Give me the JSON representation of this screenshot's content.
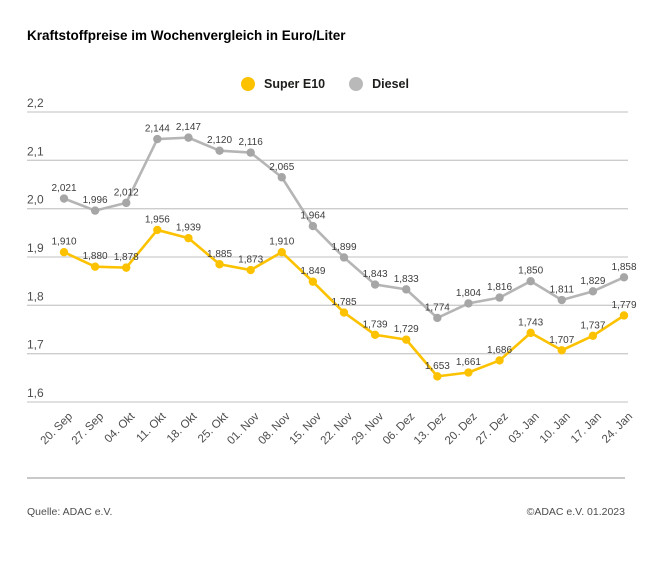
{
  "title": "Kraftstoffpreise im Wochenvergleich in Euro/Liter",
  "legend": {
    "items": [
      {
        "label": "Super E10",
        "color": "#fcc200"
      },
      {
        "label": "Diesel",
        "color": "#b9b9b9"
      }
    ]
  },
  "footer": {
    "source": "Quelle: ADAC e.V.",
    "copyright": "©ADAC e.V. 01.2023"
  },
  "colors": {
    "grid": "#cdcdcd",
    "value_label_text": "#3d3d3d",
    "axis_text": "#4d4d4d",
    "super_e10": "#fcc200",
    "diesel_line": "#b5b5b5",
    "diesel_point": "#a6a6a6"
  },
  "chart_data": {
    "type": "line",
    "title": "Kraftstoffpreise im Wochenvergleich in Euro/Liter",
    "xlabel": "",
    "ylabel": "Euro/Liter",
    "grid": true,
    "legend_position": "top",
    "ylim": [
      1.6,
      2.2
    ],
    "yticks": [
      {
        "label": "2,2",
        "value": 2.2
      },
      {
        "label": "2,1",
        "value": 2.1
      },
      {
        "label": "2,0",
        "value": 2.0
      },
      {
        "label": "1,9",
        "value": 1.9
      },
      {
        "label": "1,8",
        "value": 1.8
      },
      {
        "label": "1,7",
        "value": 1.7
      },
      {
        "label": "1,6",
        "value": 1.6
      }
    ],
    "categories": [
      "20. Sep",
      "27. Sep",
      "04. Okt",
      "11. Okt",
      "18. Okt",
      "25. Okt",
      "01. Nov",
      "08. Nov",
      "15. Nov",
      "22. Nov",
      "29. Nov",
      "06. Dez",
      "13. Dez",
      "20. Dez",
      "27. Dez",
      "03. Jan",
      "10. Jan",
      "17. Jan",
      "24. Jan"
    ],
    "series": [
      {
        "name": "Super E10",
        "line_color": "#fcc200",
        "point_color": "#fcc200",
        "values": [
          1.91,
          1.88,
          1.878,
          1.956,
          1.939,
          1.885,
          1.873,
          1.91,
          1.849,
          1.785,
          1.739,
          1.729,
          1.653,
          1.661,
          1.686,
          1.743,
          1.707,
          1.737,
          1.779
        ]
      },
      {
        "name": "Diesel",
        "line_color": "#b5b5b5",
        "point_color": "#a6a6a6",
        "values": [
          2.021,
          1.996,
          2.012,
          2.144,
          2.147,
          2.12,
          2.116,
          2.065,
          1.964,
          1.899,
          1.843,
          1.833,
          1.774,
          1.804,
          1.816,
          1.85,
          1.811,
          1.829,
          1.858
        ]
      }
    ],
    "value_label_decimal_separator": ","
  }
}
